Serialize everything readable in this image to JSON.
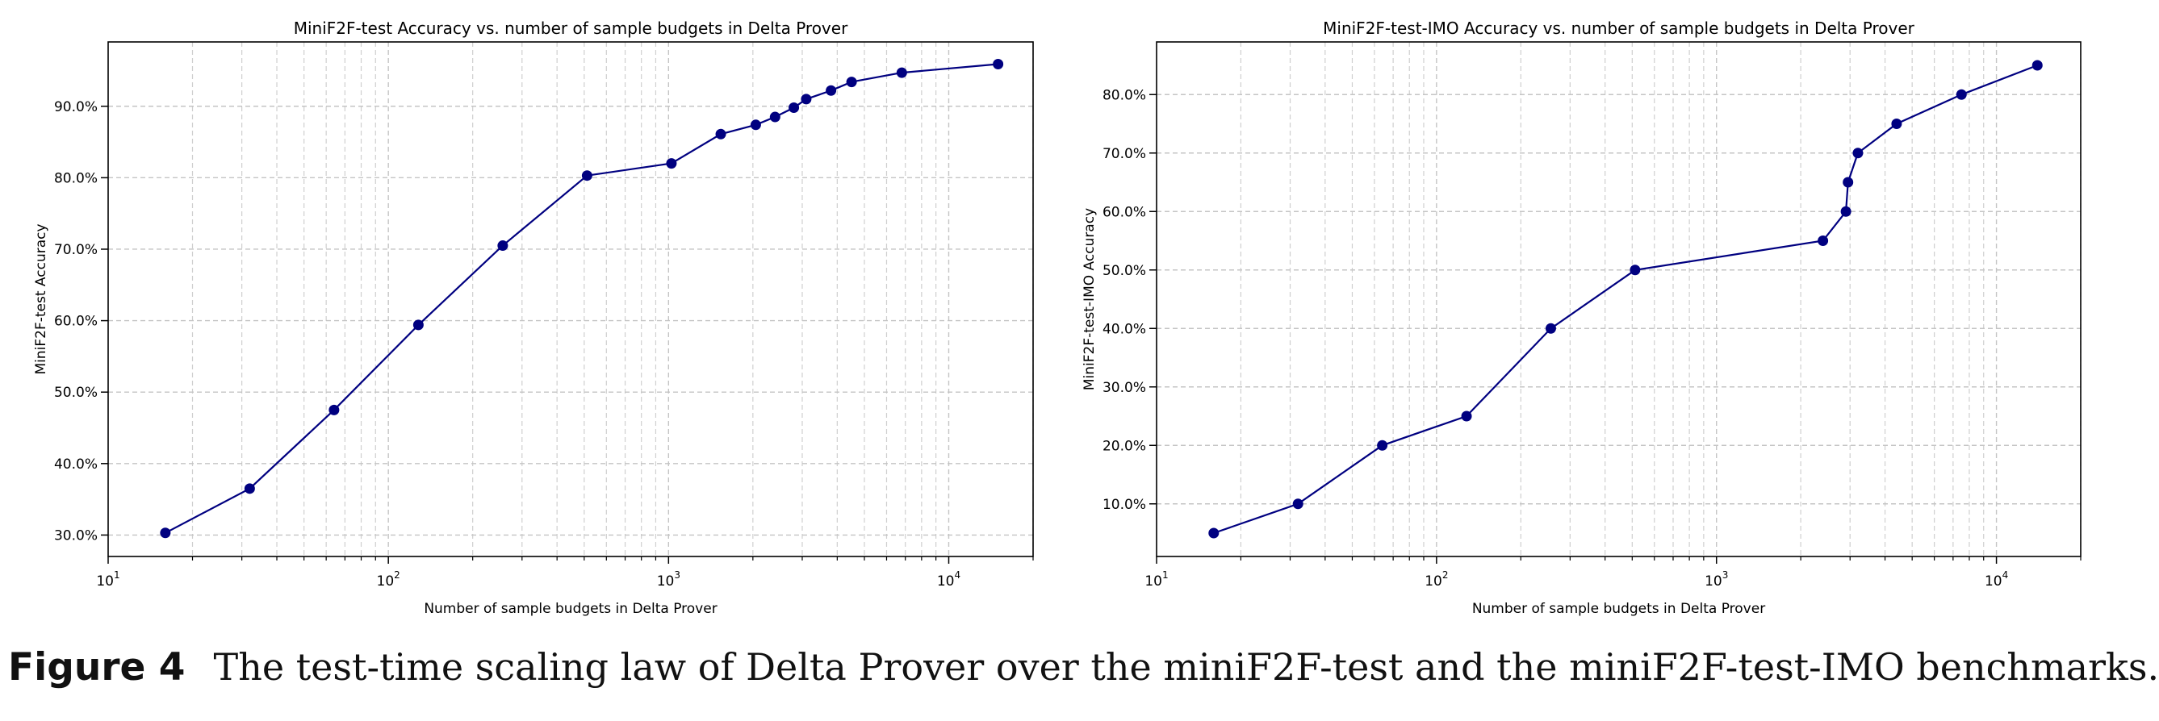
{
  "chart_data": [
    {
      "type": "line",
      "title": "MiniF2F-test Accuracy vs. number of sample budgets in Delta Prover",
      "xlabel": "Number of sample budgets in Delta Prover",
      "ylabel": "MiniF2F-test Accuracy",
      "xscale": "log",
      "xlim": [
        10,
        20000
      ],
      "ylim": [
        27.0,
        99.0
      ],
      "xticks": [
        {
          "v": 10,
          "label": "10",
          "exp": "1"
        },
        {
          "v": 100,
          "label": "10",
          "exp": "2"
        },
        {
          "v": 1000,
          "label": "10",
          "exp": "3"
        },
        {
          "v": 10000,
          "label": "10",
          "exp": "4"
        }
      ],
      "yticks": [
        30,
        40,
        50,
        60,
        70,
        80,
        90
      ],
      "ytick_labels": [
        "30.0%",
        "40.0%",
        "50.0%",
        "60.0%",
        "70.0%",
        "80.0%",
        "90.0%"
      ],
      "grid": true,
      "color": "#000080",
      "x": [
        16,
        32,
        64,
        128,
        256,
        512,
        1024,
        1536,
        2048,
        2400,
        2800,
        3100,
        3800,
        4500,
        6800,
        15000
      ],
      "y": [
        30.3,
        36.5,
        47.5,
        59.4,
        70.5,
        80.3,
        82.0,
        86.1,
        87.4,
        88.5,
        89.8,
        91.0,
        92.2,
        93.4,
        94.7,
        95.9
      ]
    },
    {
      "type": "line",
      "title": "MiniF2F-test-IMO Accuracy vs. number of sample budgets in Delta Prover",
      "xlabel": "Number of sample budgets in Delta Prover",
      "ylabel": "MiniF2F-test-IMO Accuracy",
      "xscale": "log",
      "xlim": [
        10,
        20000
      ],
      "ylim": [
        1.0,
        89.0
      ],
      "xticks": [
        {
          "v": 10,
          "label": "10",
          "exp": "1"
        },
        {
          "v": 100,
          "label": "10",
          "exp": "2"
        },
        {
          "v": 1000,
          "label": "10",
          "exp": "3"
        },
        {
          "v": 10000,
          "label": "10",
          "exp": "4"
        }
      ],
      "yticks": [
        10,
        20,
        30,
        40,
        50,
        60,
        70,
        80
      ],
      "ytick_labels": [
        "10.0%",
        "20.0%",
        "30.0%",
        "40.0%",
        "50.0%",
        "60.0%",
        "70.0%",
        "80.0%"
      ],
      "grid": true,
      "color": "#000080",
      "x": [
        16,
        32,
        64,
        128,
        256,
        512,
        2400,
        2900,
        2950,
        3200,
        4400,
        7500,
        14000
      ],
      "y": [
        5,
        10,
        20,
        25,
        40,
        50,
        55,
        60,
        65,
        70,
        75,
        80,
        85
      ]
    }
  ],
  "caption": {
    "label": "Figure 4",
    "text": "The test-time scaling law of Delta Prover over the miniF2F-test and the miniF2F-test-IMO benchmarks."
  }
}
